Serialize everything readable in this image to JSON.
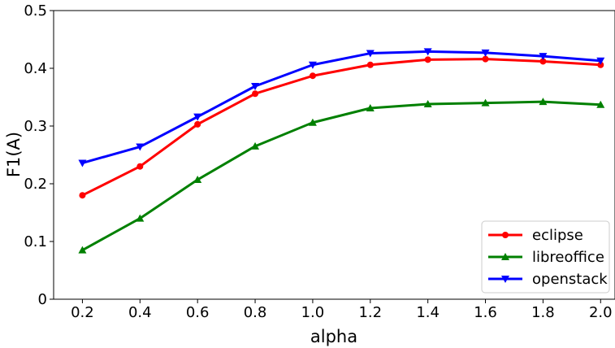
{
  "chart_data": {
    "type": "line",
    "title": "",
    "xlabel": "alpha",
    "ylabel": "F1(A)",
    "x": [
      0.2,
      0.4,
      0.6,
      0.8,
      1.0,
      1.2,
      1.4,
      1.6,
      1.8,
      2.0
    ],
    "x_tick_labels": [
      "0.2",
      "0.4",
      "0.6",
      "0.8",
      "1.0",
      "1.2",
      "1.4",
      "1.6",
      "1.8",
      "2.0"
    ],
    "xlim": [
      0.1,
      2.05
    ],
    "ylim": [
      0,
      0.5
    ],
    "y_ticks": [
      0,
      0.1,
      0.2,
      0.3,
      0.4,
      0.5
    ],
    "y_tick_labels": [
      "0",
      "0.1",
      "0.2",
      "0.3",
      "0.4",
      "0.5"
    ],
    "grid": false,
    "legend_position": "bottom-right",
    "series": [
      {
        "name": "eclipse",
        "color": "#ff0000",
        "marker": "circle",
        "values": [
          0.18,
          0.23,
          0.303,
          0.356,
          0.387,
          0.406,
          0.415,
          0.416,
          0.412,
          0.406
        ]
      },
      {
        "name": "libreoffice",
        "color": "#008000",
        "marker": "triangle-up",
        "values": [
          0.085,
          0.14,
          0.207,
          0.265,
          0.306,
          0.331,
          0.338,
          0.34,
          0.342,
          0.337
        ]
      },
      {
        "name": "openstack",
        "color": "#0000ff",
        "marker": "triangle-down",
        "values": [
          0.236,
          0.264,
          0.316,
          0.369,
          0.406,
          0.426,
          0.429,
          0.427,
          0.421,
          0.413
        ]
      }
    ]
  }
}
